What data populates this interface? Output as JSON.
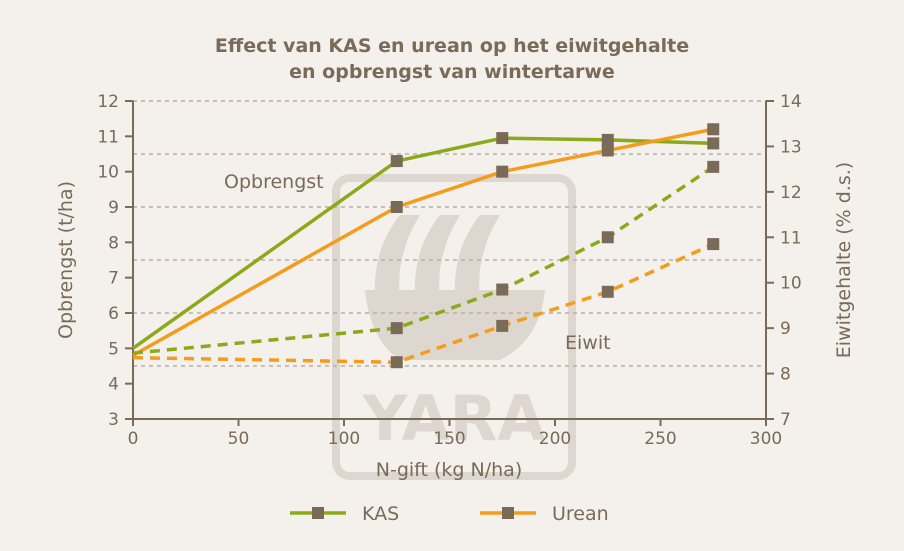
{
  "chart_data": {
    "type": "line",
    "title": [
      "Effect van KAS en urean op het eiwitgehalte",
      "en opbrengst van wintertarwe"
    ],
    "xlabel": "N-gift (kg N/ha)",
    "ylabel": "Opbrengst (t/ha)",
    "y2label": "Eiwitgehalte (% d.s.)",
    "xlim": [
      0,
      300
    ],
    "ylim": [
      3,
      12
    ],
    "y2lim": [
      7,
      14
    ],
    "xticks": [
      "0",
      "50",
      "100",
      "150",
      "200",
      "250",
      "300"
    ],
    "yticks": [
      "3",
      "4",
      "5",
      "6",
      "7",
      "8",
      "9",
      "10",
      "11",
      "12"
    ],
    "y2ticks": [
      "7",
      "8",
      "9",
      "10",
      "11",
      "12",
      "13",
      "14"
    ],
    "grid": "horizontal dashed",
    "annotations": {
      "yield": "Opbrengst",
      "protein": "Eiwit"
    },
    "legend_position": "bottom",
    "legend": [
      "KAS",
      "Urean"
    ],
    "colors": {
      "KAS": "#8aaa1a",
      "Urean": "#f39c1e",
      "marker": "#7a6a58",
      "text": "#7a6a58"
    },
    "watermark": "YARA",
    "series": [
      {
        "name": "KAS",
        "measure": "Opbrengst",
        "axis": "left",
        "style": "solid",
        "x": [
          0,
          125,
          175,
          225,
          275
        ],
        "y": [
          5.0,
          10.3,
          10.95,
          10.9,
          10.8
        ]
      },
      {
        "name": "Urean",
        "measure": "Opbrengst",
        "axis": "left",
        "style": "solid",
        "x": [
          0,
          125,
          175,
          225,
          275
        ],
        "y": [
          4.8,
          9.0,
          10.0,
          10.6,
          11.2
        ]
      },
      {
        "name": "KAS",
        "measure": "Eiwit",
        "axis": "right",
        "style": "dashed",
        "x": [
          0,
          125,
          175,
          225,
          275
        ],
        "y": [
          8.45,
          9.0,
          9.85,
          11.0,
          12.55
        ]
      },
      {
        "name": "Urean",
        "measure": "Eiwit",
        "axis": "right",
        "style": "dashed",
        "x": [
          0,
          125,
          175,
          225,
          275
        ],
        "y": [
          8.35,
          8.25,
          9.05,
          9.8,
          10.85
        ]
      }
    ]
  }
}
